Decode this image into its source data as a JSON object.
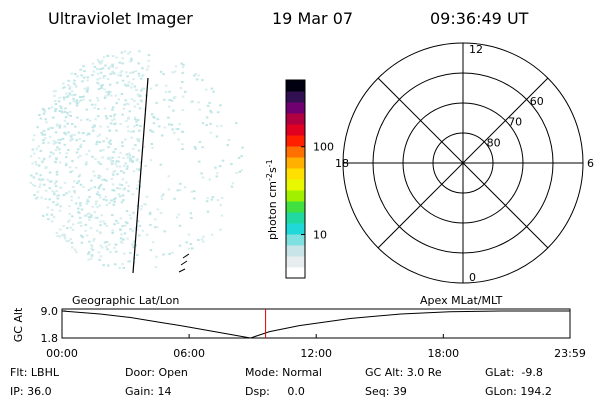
{
  "header": {
    "instrument": "Ultraviolet Imager",
    "date": "19 Mar 07",
    "time": "09:36:49 UT"
  },
  "colorbar": {
    "label": "photon cm",
    "label_exp1": "-2",
    "label_mid": "s",
    "label_exp2": "-1",
    "log": true,
    "clim": [
      3.2,
      575
    ],
    "ticks": [
      10,
      100
    ],
    "colors": [
      "#ffffff",
      "#e8eef0",
      "#c8e4e8",
      "#7fe0e0",
      "#20d8d8",
      "#20d8a0",
      "#40e040",
      "#a0f000",
      "#e8f800",
      "#ffe000",
      "#ffb000",
      "#ff7000",
      "#ff2000",
      "#e00020",
      "#b00040",
      "#700070",
      "#301050",
      "#000010"
    ]
  },
  "polar": {
    "rlim": [
      90,
      50
    ],
    "rings": [
      60,
      70,
      80
    ],
    "hours": [
      12,
      18,
      0,
      6
    ]
  },
  "chart_data": {
    "type": "line",
    "title_left": "Geographic Lat/Lon",
    "title_right": "Apex MLat/MLT",
    "ylabel": "GC Alt",
    "x": [
      0,
      1.8,
      3.2,
      4.6,
      5.6,
      6.5,
      7.5,
      8.4,
      8.9,
      9.8,
      11.2,
      13.6,
      16.0,
      18.3,
      20.7,
      23.98
    ],
    "y": [
      9.0,
      8.2,
      7.3,
      6.0,
      5.1,
      4.2,
      3.2,
      2.3,
      1.8,
      3.5,
      5.1,
      7.0,
      8.2,
      8.8,
      9.0,
      9.0
    ],
    "color": "#000000",
    "marker_x": 9.61,
    "marker_color": "#e00000",
    "xlim": [
      0,
      23.98
    ],
    "ylim": [
      1.8,
      9.0
    ],
    "xticks": [
      {
        "value": 0,
        "label": "00:00"
      },
      {
        "value": 6,
        "label": "06:00"
      },
      {
        "value": 12,
        "label": "12:00"
      },
      {
        "value": 18,
        "label": "18:00"
      },
      {
        "value": 23.98,
        "label": "23:59"
      }
    ],
    "yticks": [
      {
        "value": 9.0,
        "label": "9.0"
      },
      1.8
    ]
  },
  "footer": {
    "rows": [
      [
        "Flt: LBHL",
        "Door: Open",
        "Mode: Normal",
        "GC Alt: 3.0 Re",
        "GLat:  -9.8"
      ],
      [
        "IP: 36.0",
        "Gain: 14",
        "Dsp:     0.0",
        "Seq: 39",
        "GLon: 194.2"
      ]
    ]
  }
}
